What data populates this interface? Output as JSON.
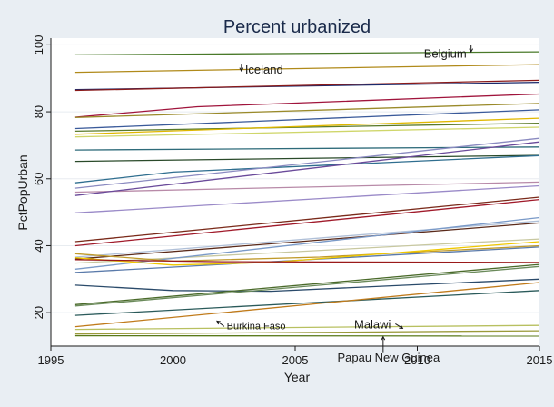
{
  "chart_data": {
    "type": "line",
    "title": "Percent urbanized",
    "xlabel": "Year",
    "ylabel": "PctPopUrban",
    "xlim": [
      1995,
      2015
    ],
    "ylim": [
      10,
      102
    ],
    "xticks": [
      1995,
      2000,
      2005,
      2010,
      2015
    ],
    "yticks": [
      20,
      40,
      60,
      80,
      100
    ],
    "grid": "horizontal",
    "legend": "none",
    "background_color": "#e9eef3",
    "plot_background_color": "#ffffff",
    "series": [
      {
        "values": [
          [
            1996,
            97.0
          ],
          [
            2015,
            97.9
          ]
        ],
        "color": "#4a7a2a"
      },
      {
        "values": [
          [
            1996,
            91.8
          ],
          [
            2015,
            94.1
          ]
        ],
        "color": "#b08a1a"
      },
      {
        "values": [
          [
            1996,
            86.6
          ],
          [
            2015,
            88.8
          ]
        ],
        "color": "#1a2a6c"
      },
      {
        "values": [
          [
            1996,
            86.4
          ],
          [
            2015,
            89.4
          ]
        ],
        "color": "#8a1a1a"
      },
      {
        "values": [
          [
            1996,
            78.4
          ],
          [
            2001,
            81.5
          ],
          [
            2015,
            85.3
          ]
        ],
        "color": "#a0143c"
      },
      {
        "values": [
          [
            1996,
            78.3
          ],
          [
            2015,
            82.5
          ]
        ],
        "color": "#9a8a2a"
      },
      {
        "values": [
          [
            1996,
            75.0
          ],
          [
            2015,
            80.6
          ]
        ],
        "color": "#3a5a9a"
      },
      {
        "values": [
          [
            1996,
            74.2
          ],
          [
            2015,
            76.6
          ]
        ],
        "color": "#5a7a2a"
      },
      {
        "values": [
          [
            1996,
            73.3
          ],
          [
            2015,
            78.1
          ]
        ],
        "color": "#e0b800"
      },
      {
        "values": [
          [
            1996,
            72.5
          ],
          [
            2015,
            75.4
          ]
        ],
        "color": "#cfd66a"
      },
      {
        "values": [
          [
            1996,
            68.6
          ],
          [
            2015,
            69.5
          ]
        ],
        "color": "#2e6b7a"
      },
      {
        "values": [
          [
            1996,
            65.2
          ],
          [
            2015,
            67.0
          ]
        ],
        "color": "#2a4a2a"
      },
      {
        "values": [
          [
            1996,
            58.8
          ],
          [
            2000,
            62.0
          ],
          [
            2015,
            66.9
          ]
        ],
        "color": "#2f6e8f"
      },
      {
        "values": [
          [
            1996,
            57.2
          ],
          [
            2015,
            72.1
          ]
        ],
        "color": "#8a8ac0"
      },
      {
        "values": [
          [
            1996,
            56.0
          ],
          [
            2015,
            59.0
          ]
        ],
        "color": "#b88aa8"
      },
      {
        "values": [
          [
            1996,
            55.0
          ],
          [
            2015,
            71.0
          ]
        ],
        "color": "#6a4a9a"
      },
      {
        "values": [
          [
            1996,
            49.8
          ],
          [
            2015,
            57.9
          ]
        ],
        "color": "#9a8ac8"
      },
      {
        "values": [
          [
            1996,
            41.2
          ],
          [
            2015,
            54.5
          ]
        ],
        "color": "#7a2a1a"
      },
      {
        "values": [
          [
            1996,
            40.0
          ],
          [
            2015,
            53.8
          ]
        ],
        "color": "#a01a2a"
      },
      {
        "values": [
          [
            1996,
            36.6
          ],
          [
            2015,
            47.4
          ]
        ],
        "color": "#b0c0d8"
      },
      {
        "values": [
          [
            1996,
            36.0
          ],
          [
            2015,
            46.8
          ]
        ],
        "color": "#5a2a1a"
      },
      {
        "values": [
          [
            1996,
            34.8
          ],
          [
            2015,
            42.0
          ]
        ],
        "color": "#c8c8a0"
      },
      {
        "values": [
          [
            1996,
            33.0
          ],
          [
            2015,
            48.4
          ]
        ],
        "color": "#7a9ac8"
      },
      {
        "values": [
          [
            1996,
            32.0
          ],
          [
            2015,
            39.6
          ]
        ],
        "color": "#5a7aaa"
      },
      {
        "values": [
          [
            1996,
            37.6
          ],
          [
            2000,
            35.4
          ],
          [
            2006,
            36.6
          ],
          [
            2015,
            40.0
          ]
        ],
        "color": "#c09a2a"
      },
      {
        "values": [
          [
            1996,
            36.4
          ],
          [
            2000,
            34.2
          ],
          [
            2004,
            35.0
          ],
          [
            2015,
            41.2
          ]
        ],
        "color": "#f0c800"
      },
      {
        "values": [
          [
            1996,
            35.8
          ],
          [
            2002,
            35.2
          ],
          [
            2015,
            35.0
          ]
        ],
        "color": "#9a1a1a"
      },
      {
        "values": [
          [
            1996,
            28.2
          ],
          [
            2000,
            26.6
          ],
          [
            2004,
            26.4
          ],
          [
            2015,
            30.0
          ]
        ],
        "color": "#2a4a6a"
      },
      {
        "values": [
          [
            1996,
            22.4
          ],
          [
            2015,
            34.4
          ]
        ],
        "color": "#4a6a2a"
      },
      {
        "values": [
          [
            1996,
            22.0
          ],
          [
            2015,
            33.8
          ]
        ],
        "color": "#6a8a5a"
      },
      {
        "values": [
          [
            1996,
            19.2
          ],
          [
            2015,
            26.6
          ]
        ],
        "color": "#2a5a5a"
      },
      {
        "values": [
          [
            1996,
            15.8
          ],
          [
            2015,
            29.0
          ]
        ],
        "color": "#c07a1a"
      },
      {
        "values": [
          [
            1996,
            15.0
          ],
          [
            2015,
            16.2
          ]
        ],
        "color": "#b8c060"
      },
      {
        "values": [
          [
            1996,
            13.6
          ],
          [
            2015,
            14.6
          ]
        ],
        "color": "#9a9a3a"
      },
      {
        "values": [
          [
            1996,
            13.1
          ],
          [
            2015,
            13.0
          ]
        ],
        "color": "#5a7a1a"
      }
    ],
    "annotations": [
      {
        "text": "Belgium",
        "x": 2012.2,
        "y": 97.3,
        "arrow_to": [
          2012.2,
          97.9
        ]
      },
      {
        "text": "Iceland",
        "x": 2002.8,
        "y": 92.8,
        "arrow_to": [
          2002.8,
          92.2
        ]
      },
      {
        "text": "Burkina Faso",
        "x": 2002.2,
        "y": 16.1,
        "arrow_to": [
          2001.8,
          17.5
        ]
      },
      {
        "text": "Malawi",
        "x": 2008.4,
        "y": 16.6,
        "arrow_to": [
          2009.4,
          15.3
        ]
      },
      {
        "text": "Papau New Guinea",
        "x": 2008.6,
        "y": 8.9,
        "arrow_to": [
          2008.6,
          12.8
        ]
      }
    ]
  }
}
